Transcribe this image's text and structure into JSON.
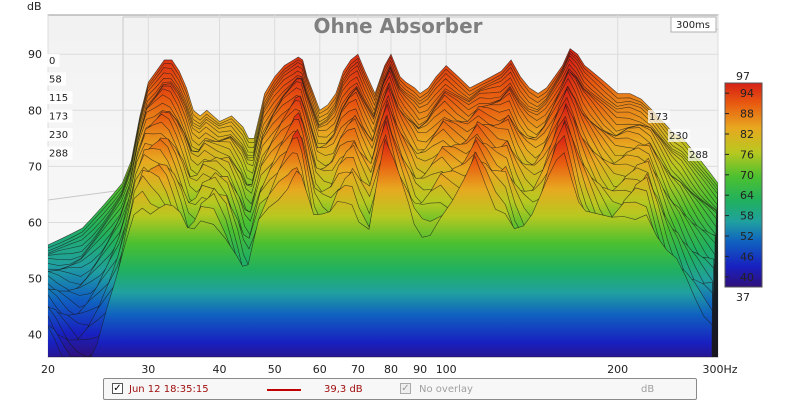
{
  "chart_data": {
    "type": "waterfall",
    "title": "Ohne Absorber",
    "window_label": "300ms",
    "ylabel": "dB",
    "xlabel_unit": "Hz",
    "xscale": "log",
    "xlim": [
      20,
      300
    ],
    "ylim": [
      36,
      97
    ],
    "x_ticks": [
      {
        "value": 20,
        "label": "20"
      },
      {
        "value": 30,
        "label": "30"
      },
      {
        "value": 40,
        "label": "40"
      },
      {
        "value": 50,
        "label": "50"
      },
      {
        "value": 60,
        "label": "60"
      },
      {
        "value": 70,
        "label": "70"
      },
      {
        "value": 80,
        "label": "80"
      },
      {
        "value": 90,
        "label": "90"
      },
      {
        "value": 100,
        "label": "100"
      },
      {
        "value": 200,
        "label": "200"
      },
      {
        "value": 300,
        "label": "300Hz"
      }
    ],
    "y_ticks": [
      {
        "value": 40,
        "label": "40"
      },
      {
        "value": 50,
        "label": "50"
      },
      {
        "value": 60,
        "label": "60"
      },
      {
        "value": 70,
        "label": "70"
      },
      {
        "value": 80,
        "label": "80"
      },
      {
        "value": 90,
        "label": "90"
      }
    ],
    "time_slices_ms": [
      {
        "value": 0,
        "label": "0"
      },
      {
        "value": 58,
        "label": "58"
      },
      {
        "value": 115,
        "label": "115"
      },
      {
        "value": 173,
        "label": "173"
      },
      {
        "value": 230,
        "label": "230"
      },
      {
        "value": 288,
        "label": "288"
      }
    ],
    "right_time_labels": [
      {
        "value": 173,
        "label": "173"
      },
      {
        "value": 230,
        "label": "230"
      },
      {
        "value": 288,
        "label": "288"
      }
    ],
    "colorbar": {
      "min_label": "37",
      "max_label": "97",
      "min": 37,
      "max": 97,
      "ticks": [
        {
          "value": 40,
          "label": "40"
        },
        {
          "value": 46,
          "label": "46"
        },
        {
          "value": 52,
          "label": "52"
        },
        {
          "value": 58,
          "label": "58"
        },
        {
          "value": 64,
          "label": "64"
        },
        {
          "value": 70,
          "label": "70"
        },
        {
          "value": 76,
          "label": "76"
        },
        {
          "value": 82,
          "label": "82"
        },
        {
          "value": 88,
          "label": "88"
        },
        {
          "value": 94,
          "label": "94"
        }
      ]
    },
    "first_slice": {
      "freq_hz": [
        20,
        21,
        22,
        23,
        24,
        25,
        26,
        27,
        28,
        29,
        30,
        31,
        32,
        33,
        34,
        35,
        36,
        37,
        38,
        40,
        42,
        44,
        45,
        46,
        47,
        48,
        50,
        52,
        54,
        55,
        56,
        57,
        58,
        60,
        62,
        64,
        66,
        68,
        70,
        72,
        75,
        78,
        80,
        83,
        85,
        88,
        90,
        93,
        96,
        100,
        105,
        110,
        115,
        120,
        125,
        130,
        135,
        140,
        145,
        150,
        155,
        160,
        165,
        170,
        175,
        180,
        190,
        200,
        210,
        220,
        230,
        240,
        250,
        260,
        270,
        280,
        290,
        300
      ],
      "db": [
        56,
        57,
        58,
        59,
        61,
        63,
        65,
        67,
        71,
        79,
        85,
        87,
        89,
        89,
        87,
        84,
        80,
        79,
        80,
        78,
        79,
        77,
        75,
        75,
        79,
        83,
        86,
        88,
        89,
        89.5,
        89,
        86,
        84,
        80,
        81,
        83,
        87,
        89,
        90,
        87,
        83,
        88,
        90,
        86,
        85,
        84,
        83,
        84,
        86,
        88,
        86,
        84,
        85,
        86,
        87,
        89,
        86,
        84,
        83,
        84,
        86,
        88,
        91,
        90,
        88,
        87,
        85,
        83,
        83,
        82,
        80,
        78,
        76,
        75,
        73,
        71,
        69,
        67
      ]
    },
    "legend": {
      "entries": [
        {
          "checked": true,
          "label": "Jun 12 18:35:15",
          "line_color": "#c00000",
          "value": "39,3 dB"
        },
        {
          "checked": true,
          "disabled": true,
          "label": "No overlay",
          "value": "dB"
        }
      ]
    }
  }
}
